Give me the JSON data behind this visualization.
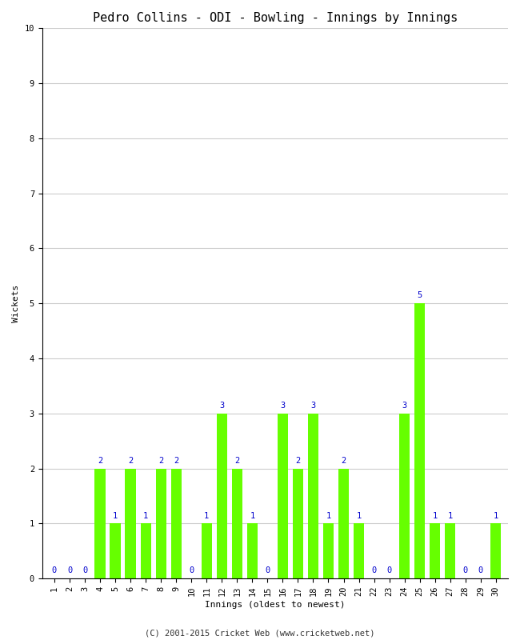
{
  "title": "Pedro Collins - ODI - Bowling - Innings by Innings",
  "xlabel": "Innings (oldest to newest)",
  "ylabel": "Wickets",
  "footer": "(C) 2001-2015 Cricket Web (www.cricketweb.net)",
  "background_color": "#ffffff",
  "bar_color": "#66ff00",
  "label_color": "#0000cc",
  "ylim": [
    0,
    10
  ],
  "innings": [
    1,
    2,
    3,
    4,
    5,
    6,
    7,
    8,
    9,
    10,
    11,
    12,
    13,
    14,
    15,
    16,
    17,
    18,
    19,
    20,
    21,
    22,
    23,
    24,
    25,
    26,
    27,
    28,
    29,
    30
  ],
  "wickets": [
    0,
    0,
    0,
    2,
    1,
    2,
    1,
    2,
    2,
    0,
    1,
    3,
    2,
    1,
    0,
    3,
    2,
    3,
    1,
    2,
    1,
    0,
    0,
    3,
    5,
    1,
    1,
    0,
    0,
    1
  ],
  "title_fontsize": 11,
  "label_fontsize": 8,
  "tick_fontsize": 7.5,
  "footer_fontsize": 7.5,
  "annotation_fontsize": 7.5,
  "grid_color": "#cccccc",
  "bar_width": 0.7
}
